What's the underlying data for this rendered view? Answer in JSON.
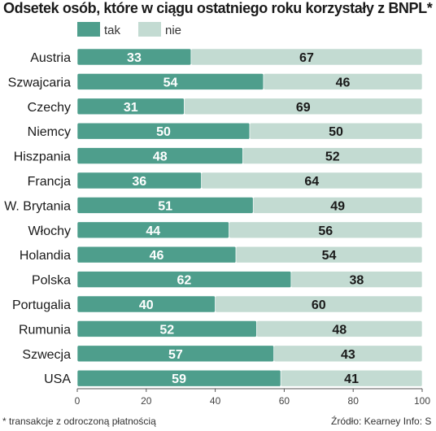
{
  "colors": {
    "tak": "#4e9e8c",
    "nie": "#c3dbd2",
    "value_on_tak": "#ffffff",
    "value_on_nie": "#1a1a1a",
    "text": "#1a1a1a"
  },
  "footnote_left": "* transakcje z odroczoną płatnością",
  "footnote_right": "Źródło: Kearney   Info: S",
  "chart_data": {
    "type": "bar",
    "orientation": "horizontal",
    "stacked": true,
    "title": "Odsetek osób, które w ciągu ostatniego roku korzystały z BNPL*",
    "categories": [
      "Austria",
      "Szwajcaria",
      "Czechy",
      "Niemcy",
      "Hiszpania",
      "Francja",
      "W. Brytania",
      "Włochy",
      "Holandia",
      "Polska",
      "Portugalia",
      "Rumunia",
      "Szwecja",
      "USA"
    ],
    "series": [
      {
        "name": "tak",
        "values": [
          33,
          54,
          31,
          50,
          48,
          36,
          51,
          44,
          46,
          62,
          40,
          52,
          57,
          59
        ]
      },
      {
        "name": "nie",
        "values": [
          67,
          46,
          69,
          50,
          52,
          64,
          49,
          56,
          54,
          38,
          60,
          48,
          43,
          41
        ]
      }
    ],
    "xlim": [
      0,
      100
    ],
    "xticks": [
      "0",
      "20",
      "40",
      "60",
      "80",
      "100"
    ],
    "xlabel": "",
    "ylabel": "",
    "legend": "top-left",
    "grid": false
  }
}
